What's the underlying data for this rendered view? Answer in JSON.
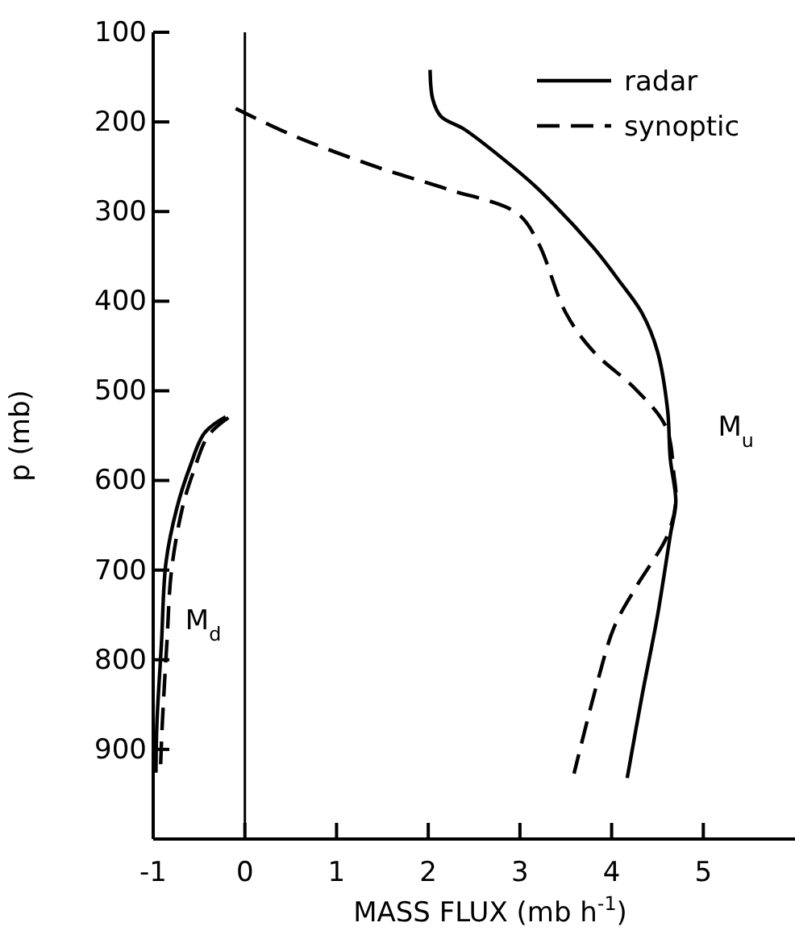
{
  "chart_data": {
    "type": "line",
    "xlabel": "MASS FLUX (mb h$^{-1}$)",
    "ylabel": "p (mb)",
    "xlim": [
      -1,
      6
    ],
    "xticks": [
      -1,
      0,
      1,
      2,
      3,
      4,
      5
    ],
    "ylim": [
      1000,
      100
    ],
    "yticks": [
      100,
      200,
      300,
      400,
      500,
      600,
      700,
      800,
      900
    ],
    "legend": "top right",
    "grid": false,
    "ref_lines": [
      {
        "axis": "x",
        "value": 0,
        "color": "#000000"
      }
    ],
    "annotations": [
      "M$_{u}$",
      "M$_{d}$"
    ],
    "series": [
      {
        "name": "radar",
        "color": "#000000",
        "line_style": "solid",
        "x": [
          2.02,
          2.05,
          2.14,
          2.39,
          2.92,
          3.2,
          3.8,
          4.08,
          4.33,
          4.5,
          4.61,
          4.64,
          4.7,
          4.64,
          4.5,
          4.33,
          4.17
        ],
        "values": [
          142,
          175,
          194,
          208,
          250,
          275,
          340,
          377,
          413,
          456,
          521,
          576,
          624,
          661,
          751,
          841,
          932
        ]
      },
      {
        "name": "synoptic",
        "color": "#000000",
        "line_style": "dashed",
        "x": [
          -0.1,
          0.5,
          1.43,
          2.21,
          2.97,
          3.2,
          3.5,
          3.8,
          4.26,
          4.59,
          4.68,
          4.7,
          4.61,
          4.26,
          4.03,
          3.85,
          3.59
        ],
        "values": [
          185,
          214,
          250,
          275,
          302,
          335,
          413,
          456,
          498,
          540,
          594,
          624,
          661,
          720,
          763,
          823,
          927
        ]
      },
      {
        "color": "#000000",
        "line_style": "solid",
        "x": [
          -0.21,
          -0.44,
          -0.6,
          -0.74,
          -0.86,
          -0.91,
          -0.96,
          -0.97
        ],
        "values": [
          529,
          547,
          585,
          630,
          691,
          782,
          872,
          926
        ]
      },
      {
        "color": "#000000",
        "line_style": "dashed",
        "x": [
          -0.18,
          -0.4,
          -0.56,
          -0.68,
          -0.8,
          -0.85,
          -0.9,
          -0.92
        ],
        "values": [
          530,
          550,
          590,
          630,
          700,
          780,
          870,
          920
        ]
      }
    ]
  }
}
